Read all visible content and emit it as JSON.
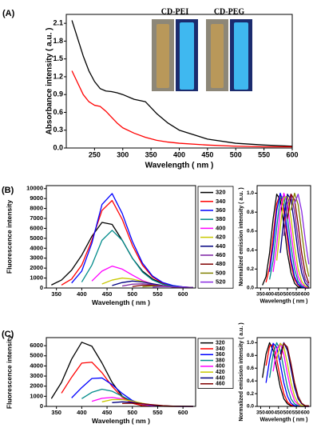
{
  "chart_data": [
    {
      "type": "line",
      "panel_label": "(A)",
      "x_label": "Wavelength ( nm )",
      "y_label": "Absorbance intensity ( a.u. )",
      "annotations": [
        "CD-PEI",
        "CD-PEG"
      ],
      "x": [
        210,
        220,
        230,
        240,
        250,
        260,
        270,
        280,
        290,
        300,
        320,
        340,
        360,
        380,
        400,
        450,
        500,
        550,
        600
      ],
      "xlim": [
        200,
        600
      ],
      "xticks": [
        250,
        300,
        350,
        400,
        450,
        500,
        550,
        600
      ],
      "ylim": [
        0,
        2.25
      ],
      "yticks": [
        {
          "value": 0,
          "label": "0.0"
        },
        0.3,
        0.6,
        0.9,
        1.2,
        1.5,
        1.8,
        2.1
      ],
      "series": [
        {
          "color": "#000000",
          "values": [
            2.15,
            1.85,
            1.55,
            1.3,
            1.12,
            1.0,
            0.96,
            0.95,
            0.93,
            0.9,
            0.82,
            0.78,
            0.58,
            0.42,
            0.3,
            0.15,
            0.08,
            0.05,
            0.03
          ]
        },
        {
          "color": "#ff0000",
          "values": [
            1.3,
            1.1,
            0.9,
            0.78,
            0.72,
            0.7,
            0.62,
            0.52,
            0.42,
            0.34,
            0.25,
            0.18,
            0.13,
            0.1,
            0.08,
            0.05,
            0.03,
            0.02,
            0.02
          ]
        }
      ]
    },
    {
      "type": "line",
      "panel_label": "(B)",
      "x_label": "Wavelength ( nm )",
      "y_label": "Fluorescence intensity",
      "legend": "right",
      "x": [
        340,
        360,
        380,
        400,
        420,
        440,
        460,
        480,
        500,
        520,
        540,
        560,
        580,
        600,
        620
      ],
      "xlim": [
        330,
        625
      ],
      "xticks": [
        350,
        400,
        450,
        500,
        550,
        600
      ],
      "ylim": [
        0,
        10300
      ],
      "yticks": [
        0,
        1000,
        2000,
        3000,
        4000,
        5000,
        6000,
        7000,
        8000,
        9000,
        10000
      ],
      "series": [
        {
          "name": "320",
          "color": "#000000",
          "values": [
            300,
            800,
            1800,
            3300,
            5200,
            6600,
            6400,
            4800,
            3000,
            1700,
            900,
            450,
            220,
            100,
            50
          ]
        },
        {
          "name": "340",
          "color": "#ff0000",
          "values": [
            null,
            300,
            900,
            2300,
            4800,
            7800,
            8800,
            6900,
            4300,
            2300,
            1100,
            500,
            230,
            100,
            50
          ]
        },
        {
          "name": "360",
          "color": "#0000ff",
          "values": [
            null,
            null,
            500,
            1700,
            4500,
            8400,
            9500,
            7500,
            4700,
            2500,
            1200,
            550,
            250,
            110,
            50
          ]
        },
        {
          "name": "380",
          "color": "#008b8b",
          "values": [
            null,
            null,
            null,
            600,
            2300,
            4800,
            5800,
            4800,
            3000,
            1600,
            800,
            380,
            170,
            80,
            40
          ]
        },
        {
          "name": "400",
          "color": "#ff00ff",
          "values": [
            null,
            null,
            null,
            null,
            700,
            1700,
            2200,
            1900,
            1300,
            750,
            400,
            200,
            100,
            50,
            25
          ]
        },
        {
          "name": "420",
          "color": "#c8c800",
          "values": [
            null,
            null,
            null,
            null,
            null,
            400,
            800,
            1000,
            900,
            650,
            400,
            220,
            110,
            55,
            30
          ]
        },
        {
          "name": "440",
          "color": "#000080",
          "values": [
            null,
            null,
            null,
            null,
            null,
            null,
            250,
            550,
            700,
            600,
            420,
            250,
            130,
            70,
            35
          ]
        },
        {
          "name": "460",
          "color": "#7b1fa2",
          "values": [
            null,
            null,
            null,
            null,
            null,
            null,
            null,
            200,
            380,
            420,
            340,
            220,
            120,
            60,
            30
          ]
        },
        {
          "name": "480",
          "color": "#800000",
          "values": [
            null,
            null,
            null,
            null,
            null,
            null,
            null,
            null,
            150,
            280,
            260,
            190,
            110,
            60,
            30
          ]
        },
        {
          "name": "500",
          "color": "#808000",
          "values": [
            null,
            null,
            null,
            null,
            null,
            null,
            null,
            null,
            null,
            120,
            200,
            180,
            120,
            65,
            35
          ]
        },
        {
          "name": "520",
          "color": "#8a2be2",
          "values": [
            null,
            null,
            null,
            null,
            null,
            null,
            null,
            null,
            null,
            null,
            100,
            150,
            120,
            80,
            40
          ]
        }
      ]
    },
    {
      "type": "line",
      "x_label": "Wavelength ( nm )",
      "y_label": "Normalized emission intensity ( a.u. )",
      "x": [
        340,
        360,
        380,
        400,
        420,
        440,
        460,
        480,
        500,
        520,
        540,
        560,
        580,
        600,
        620
      ],
      "xlim": [
        330,
        630
      ],
      "xticks": [
        350,
        400,
        450,
        500,
        550,
        600
      ],
      "ylim": [
        0,
        1.08
      ],
      "yticks": [
        {
          "value": 0,
          "label": "0.0"
        },
        0.2,
        0.4,
        0.6,
        0.8,
        {
          "value": 1,
          "label": "1.0"
        }
      ],
      "series": [
        {
          "color": "#000000",
          "values": [
            null,
            0.03,
            0.12,
            0.37,
            0.73,
            0.99,
            0.93,
            0.67,
            0.37,
            0.16,
            0.05,
            0.01,
            0.01,
            0,
            0
          ]
        },
        {
          "color": "#ff0000",
          "values": [
            null,
            null,
            0.06,
            0.22,
            0.55,
            0.89,
            0.99,
            0.81,
            0.51,
            0.25,
            0.09,
            0.03,
            0.01,
            0,
            0
          ]
        },
        {
          "color": "#0000ff",
          "values": [
            null,
            null,
            null,
            0.17,
            0.45,
            0.82,
            1,
            0.88,
            0.59,
            0.3,
            0.12,
            0.04,
            0.01,
            0,
            0
          ]
        },
        {
          "color": "#008b8b",
          "values": [
            null,
            null,
            null,
            0.09,
            0.29,
            0.64,
            0.95,
            0.97,
            0.74,
            0.44,
            0.2,
            0.07,
            0.02,
            0.01,
            0
          ]
        },
        {
          "color": "#ff00ff",
          "values": [
            null,
            null,
            null,
            null,
            0.17,
            0.45,
            0.82,
            1,
            0.88,
            0.59,
            0.3,
            0.12,
            0.04,
            0.01,
            0
          ]
        },
        {
          "color": "#c8c800",
          "values": [
            null,
            null,
            null,
            null,
            null,
            0.29,
            0.64,
            0.95,
            0.97,
            0.74,
            0.44,
            0.2,
            0.07,
            0.02,
            0.01
          ]
        },
        {
          "color": "#000080",
          "values": [
            null,
            null,
            null,
            null,
            null,
            null,
            0.37,
            0.73,
            0.99,
            0.93,
            0.67,
            0.37,
            0.16,
            0.05,
            0.01
          ]
        },
        {
          "color": "#7b1fa2",
          "values": [
            null,
            null,
            null,
            null,
            null,
            null,
            null,
            0.55,
            0.89,
            0.99,
            0.81,
            0.51,
            0.25,
            0.09,
            0.03
          ]
        },
        {
          "color": "#800000",
          "values": [
            null,
            null,
            null,
            null,
            null,
            null,
            null,
            null,
            0.73,
            0.99,
            0.93,
            0.67,
            0.37,
            0.16,
            0.05
          ]
        },
        {
          "color": "#808000",
          "values": [
            null,
            null,
            null,
            null,
            null,
            null,
            null,
            null,
            null,
            0.82,
            1,
            0.88,
            0.59,
            0.3,
            0.12
          ]
        },
        {
          "color": "#8a2be2",
          "values": [
            null,
            null,
            null,
            null,
            null,
            null,
            null,
            null,
            null,
            null,
            0.89,
            0.99,
            0.81,
            0.51,
            0.25
          ]
        }
      ]
    },
    {
      "type": "line",
      "panel_label": "(C)",
      "x_label": "Wavelength ( nm )",
      "y_label": "Fluorescence intensity",
      "legend": "right",
      "x": [
        340,
        360,
        380,
        400,
        420,
        440,
        460,
        480,
        500,
        520,
        540,
        560,
        580,
        600,
        620
      ],
      "xlim": [
        330,
        625
      ],
      "xticks": [
        350,
        400,
        450,
        500,
        550,
        600
      ],
      "ylim": [
        0,
        6800
      ],
      "yticks": [
        0,
        1000,
        2000,
        3000,
        4000,
        5000,
        6000
      ],
      "series": [
        {
          "name": "320",
          "color": "#000000",
          "values": [
            770,
            2370,
            4670,
            6340,
            5950,
            4290,
            2370,
            1020,
            320,
            60,
            20,
            10,
            0,
            0,
            0
          ]
        },
        {
          "name": "340",
          "color": "#ff0000",
          "values": [
            null,
            1310,
            2880,
            4280,
            4370,
            3330,
            1980,
            900,
            320,
            90,
            40,
            10,
            0,
            0,
            0
          ]
        },
        {
          "name": "360",
          "color": "#0000ff",
          "values": [
            null,
            null,
            840,
            1860,
            2760,
            2810,
            2150,
            1280,
            580,
            200,
            60,
            30,
            10,
            0,
            0
          ]
        },
        {
          "name": "380",
          "color": "#008b8b",
          "values": [
            null,
            null,
            null,
            770,
            1390,
            1700,
            1500,
            1000,
            510,
            200,
            70,
            20,
            10,
            0,
            0
          ]
        },
        {
          "name": "400",
          "color": "#ff00ff",
          "values": [
            null,
            null,
            null,
            null,
            500,
            800,
            890,
            730,
            460,
            230,
            80,
            30,
            10,
            0,
            0
          ]
        },
        {
          "name": "420",
          "color": "#c8c800",
          "values": [
            null,
            null,
            null,
            null,
            null,
            450,
            670,
            680,
            520,
            310,
            140,
            50,
            15,
            10,
            0
          ]
        },
        {
          "name": "440",
          "color": "#000080",
          "values": [
            null,
            null,
            null,
            null,
            null,
            null,
            370,
            450,
            400,
            270,
            135,
            55,
            20,
            10,
            0
          ]
        },
        {
          "name": "460",
          "color": "#800000",
          "values": [
            null,
            null,
            null,
            null,
            null,
            null,
            null,
            285,
            315,
            260,
            165,
            80,
            30,
            10,
            0
          ]
        }
      ]
    },
    {
      "type": "line",
      "x_label": "Wavelength ( nm )",
      "y_label": "Normalized emission intensity ( a.u. )",
      "x": [
        340,
        360,
        380,
        400,
        420,
        440,
        460,
        480,
        500,
        520,
        540,
        560,
        580,
        600,
        620
      ],
      "xlim": [
        330,
        630
      ],
      "xticks": [
        350,
        400,
        450,
        500,
        550,
        600
      ],
      "ylim": [
        0,
        1.08
      ],
      "yticks": [
        {
          "value": 0,
          "label": "0.0"
        },
        0.2,
        0.4,
        0.6,
        0.8,
        {
          "value": 1,
          "label": "1.0"
        }
      ],
      "series": [
        {
          "color": "#000000",
          "values": [
            null,
            0.45,
            0.82,
            1,
            0.88,
            0.59,
            0.3,
            0.12,
            0.04,
            0.01,
            0,
            0,
            0,
            0,
            0
          ]
        },
        {
          "color": "#ff0000",
          "values": [
            null,
            null,
            0.64,
            0.95,
            0.97,
            0.74,
            0.44,
            0.2,
            0.07,
            0.02,
            0.01,
            0,
            0,
            0,
            0
          ]
        },
        {
          "color": "#0000ff",
          "values": [
            null,
            null,
            0.37,
            0.73,
            0.99,
            0.93,
            0.67,
            0.37,
            0.16,
            0.05,
            0.01,
            0.01,
            0,
            0,
            0
          ]
        },
        {
          "color": "#008b8b",
          "values": [
            null,
            null,
            null,
            0.45,
            0.82,
            1,
            0.88,
            0.59,
            0.3,
            0.12,
            0.04,
            0.01,
            0,
            0,
            0
          ]
        },
        {
          "color": "#ff00ff",
          "values": [
            null,
            null,
            null,
            null,
            0.55,
            0.89,
            0.99,
            0.81,
            0.51,
            0.25,
            0.09,
            0.03,
            0.01,
            0,
            0
          ]
        },
        {
          "color": "#c8c800",
          "values": [
            null,
            null,
            null,
            null,
            null,
            0.73,
            0.99,
            0.93,
            0.67,
            0.37,
            0.16,
            0.05,
            0.01,
            0.01,
            0
          ]
        },
        {
          "color": "#000080",
          "values": [
            null,
            null,
            null,
            null,
            null,
            null,
            0.82,
            1,
            0.88,
            0.59,
            0.3,
            0.12,
            0.04,
            0.01,
            0
          ]
        },
        {
          "color": "#800000",
          "values": [
            null,
            null,
            null,
            null,
            null,
            null,
            0.73,
            0.99,
            0.93,
            0.67,
            0.37,
            0.16,
            0.05,
            0.01,
            0.01
          ]
        }
      ]
    }
  ]
}
